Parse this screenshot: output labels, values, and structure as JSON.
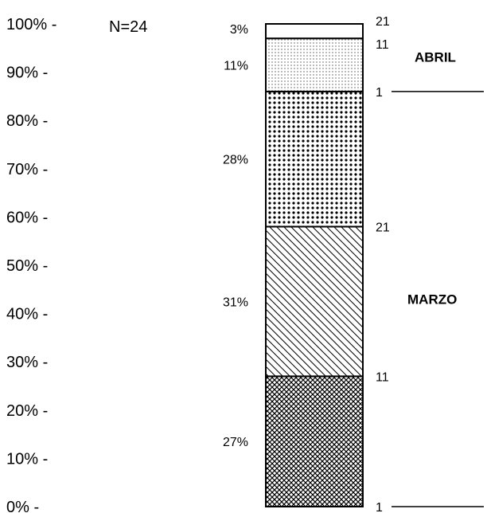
{
  "chart_data": {
    "type": "bar",
    "stacked": true,
    "n_label": "N=24",
    "y_ticks": [
      "100% -",
      "90% -",
      "80% -",
      "70% -",
      "60% -",
      "50% -",
      "40% -",
      "30% -",
      "20% -",
      "10% -",
      "0% -"
    ],
    "ylim": [
      0,
      100
    ],
    "segments": [
      {
        "label": "27%",
        "value": 27,
        "pattern": "crosshatch"
      },
      {
        "label": "31%",
        "value": 31,
        "pattern": "diagonal"
      },
      {
        "label": "28%",
        "value": 28,
        "pattern": "dots"
      },
      {
        "label": "11%",
        "value": 11,
        "pattern": "fine-dots"
      },
      {
        "label": "3%",
        "value": 3,
        "pattern": "blank"
      }
    ],
    "right_annotations": [
      {
        "text": "1",
        "at": 0
      },
      {
        "text": "11",
        "at": 27
      },
      {
        "text": "21",
        "at": 58
      },
      {
        "text": "1",
        "at": 86
      },
      {
        "text": "11",
        "at": 97
      },
      {
        "text": "21",
        "at": 100
      }
    ],
    "period_labels": [
      {
        "text": "MARZO",
        "at": 43
      },
      {
        "text": "ABRIL",
        "at": 93
      }
    ],
    "separator_lines_at": [
      0,
      86
    ]
  }
}
